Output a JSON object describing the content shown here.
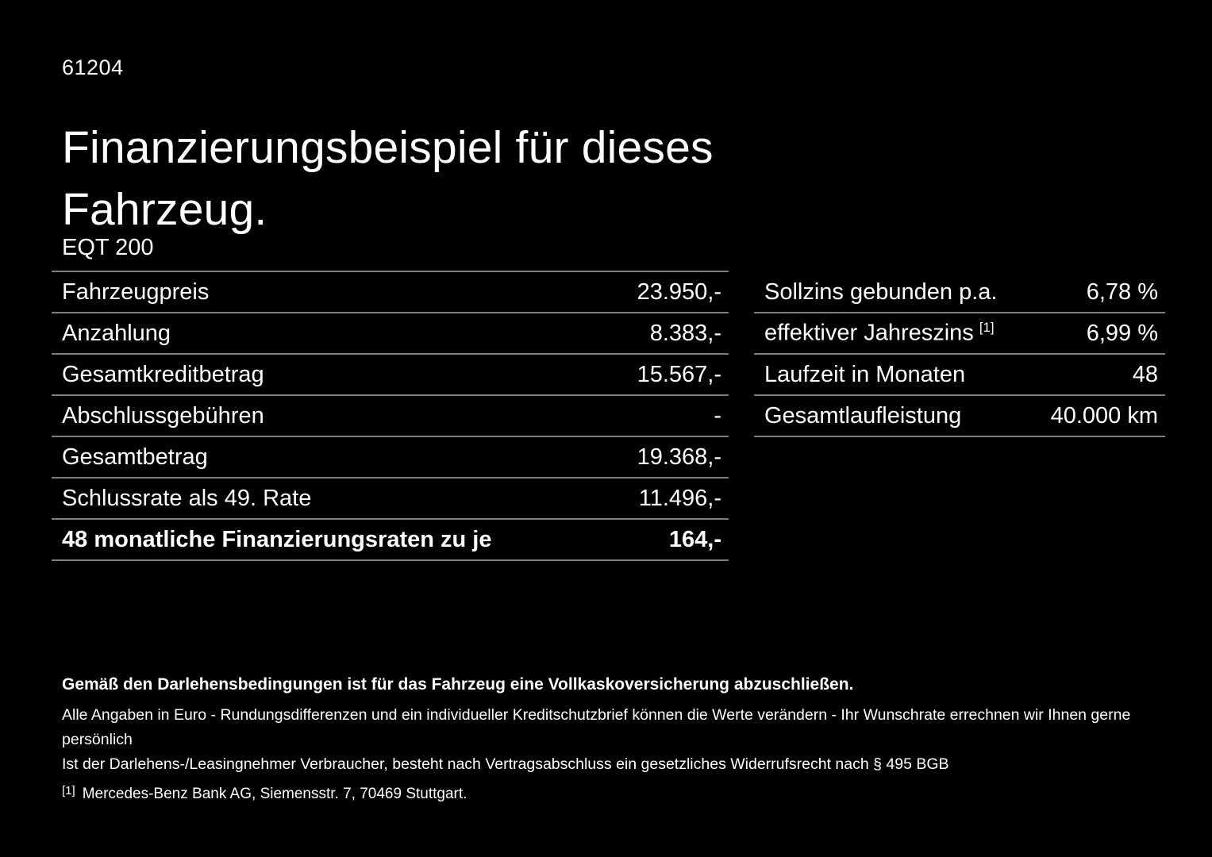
{
  "page": {
    "doc_number": "61204",
    "title": "Finanzierungsbeispiel für dieses Fahrzeug.",
    "model": "EQT 200"
  },
  "finance_table": {
    "rows": [
      {
        "label": "Fahrzeugpreis",
        "value": "23.950,-",
        "bold": false
      },
      {
        "label": "Anzahlung",
        "value": "8.383,-",
        "bold": false
      },
      {
        "label": "Gesamtkreditbetrag",
        "value": "15.567,-",
        "bold": false
      },
      {
        "label": "Abschlussgebühren",
        "value": "-",
        "bold": false
      },
      {
        "label": "Gesamtbetrag",
        "value": "19.368,-",
        "bold": false
      },
      {
        "label": "Schlussrate als 49. Rate",
        "value": "11.496,-",
        "bold": false
      },
      {
        "label": "48 monatliche Finanzierungsraten zu je",
        "value": "164,-",
        "bold": true
      }
    ]
  },
  "conditions_table": {
    "rows": [
      {
        "label": "Sollzins gebunden p.a.",
        "value": "6,78 %",
        "bold": false
      },
      {
        "label": "effektiver Jahreszins",
        "sup": "[1]",
        "value": "6,99 %",
        "bold": false
      },
      {
        "label": "Laufzeit in Monaten",
        "value": "48",
        "bold": false
      },
      {
        "label": "Gesamtlaufleistung",
        "value": "40.000 km",
        "bold": false
      }
    ]
  },
  "footer": {
    "insurance_note": "Gemäß den Darlehensbedingungen ist für das Fahrzeug eine Vollkaskoversicherung abzuschließen.",
    "note_line1": "Alle Angaben in Euro - Rundungsdifferenzen und ein individueller Kreditschutzbrief können die Werte verändern - Ihr Wunschrate errechnen wir Ihnen gerne persönlich",
    "note_line2": "Ist der Darlehens-/Leasingnehmer Verbraucher, besteht nach Vertragsabschluss ein gesetzliches Widerrufsrecht nach § 495 BGB",
    "footnote_marker": "[1]",
    "footnote_text": "Mercedes-Benz Bank AG, Siemensstr. 7, 70469 Stuttgart."
  },
  "colors": {
    "background": "#000000",
    "text": "#ffffff",
    "divider": "#7d7d7d"
  }
}
